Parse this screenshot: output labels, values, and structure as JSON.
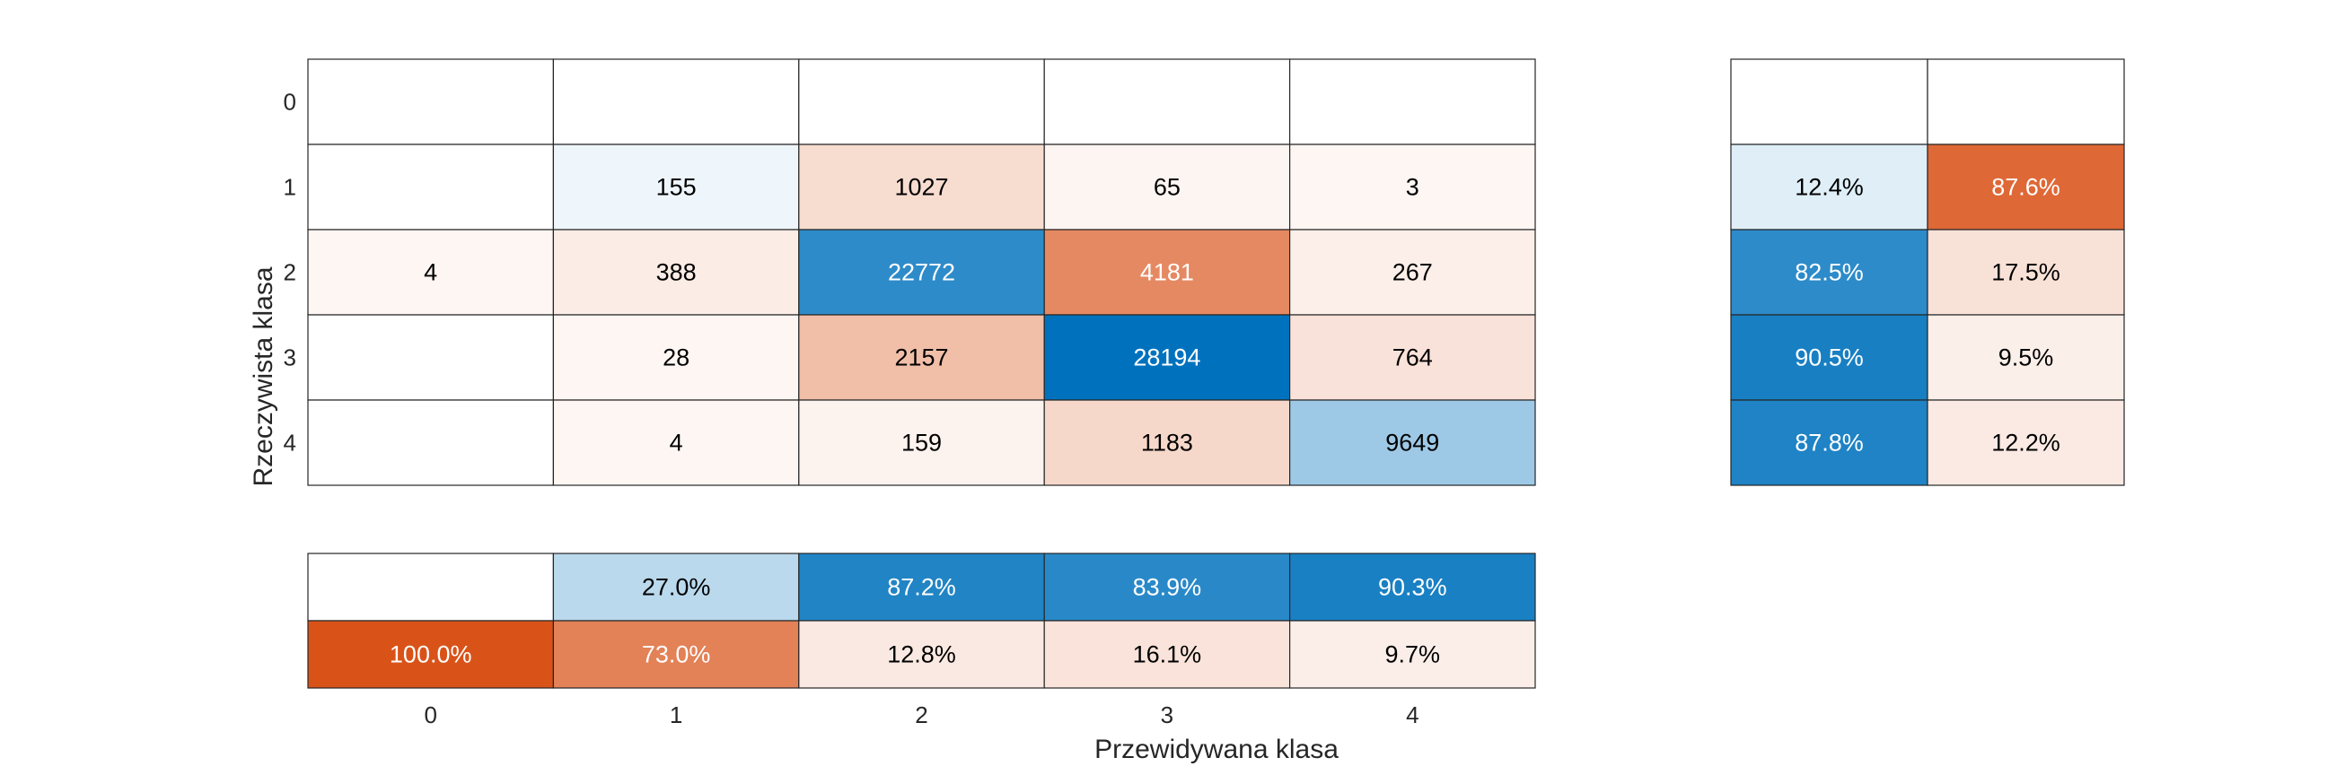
{
  "chart_data": {
    "type": "heatmap",
    "xlabel": "Przewidywana klasa",
    "ylabel": "Rzeczywista klasa",
    "classes": [
      "0",
      "1",
      "2",
      "3",
      "4"
    ],
    "matrix": [
      [
        null,
        null,
        null,
        null,
        null
      ],
      [
        null,
        155,
        1027,
        65,
        3
      ],
      [
        4,
        388,
        22772,
        4181,
        267
      ],
      [
        null,
        28,
        2157,
        28194,
        764
      ],
      [
        null,
        4,
        159,
        1183,
        9649
      ]
    ],
    "row_summary": [
      [
        null,
        null
      ],
      [
        "12.4%",
        "87.6%"
      ],
      [
        "82.5%",
        "17.5%"
      ],
      [
        "90.5%",
        "9.5%"
      ],
      [
        "87.8%",
        "12.2%"
      ]
    ],
    "row_summary_values": [
      [
        null,
        null
      ],
      [
        12.4,
        87.6
      ],
      [
        82.5,
        17.5
      ],
      [
        90.5,
        9.5
      ],
      [
        87.8,
        12.2
      ]
    ],
    "column_summary": [
      [
        null,
        "27.0%",
        "87.2%",
        "83.9%",
        "90.3%"
      ],
      [
        "100.0%",
        "73.0%",
        "12.8%",
        "16.1%",
        "9.7%"
      ]
    ],
    "column_summary_values": [
      [
        null,
        27.0,
        87.2,
        83.9,
        90.3
      ],
      [
        100.0,
        73.0,
        12.8,
        16.1,
        9.7
      ]
    ],
    "colors": {
      "correct": "#0072bd",
      "incorrect": "#d95319",
      "grid": "#262626",
      "text_dark": "#000000",
      "text_light": "#ffffff"
    }
  }
}
